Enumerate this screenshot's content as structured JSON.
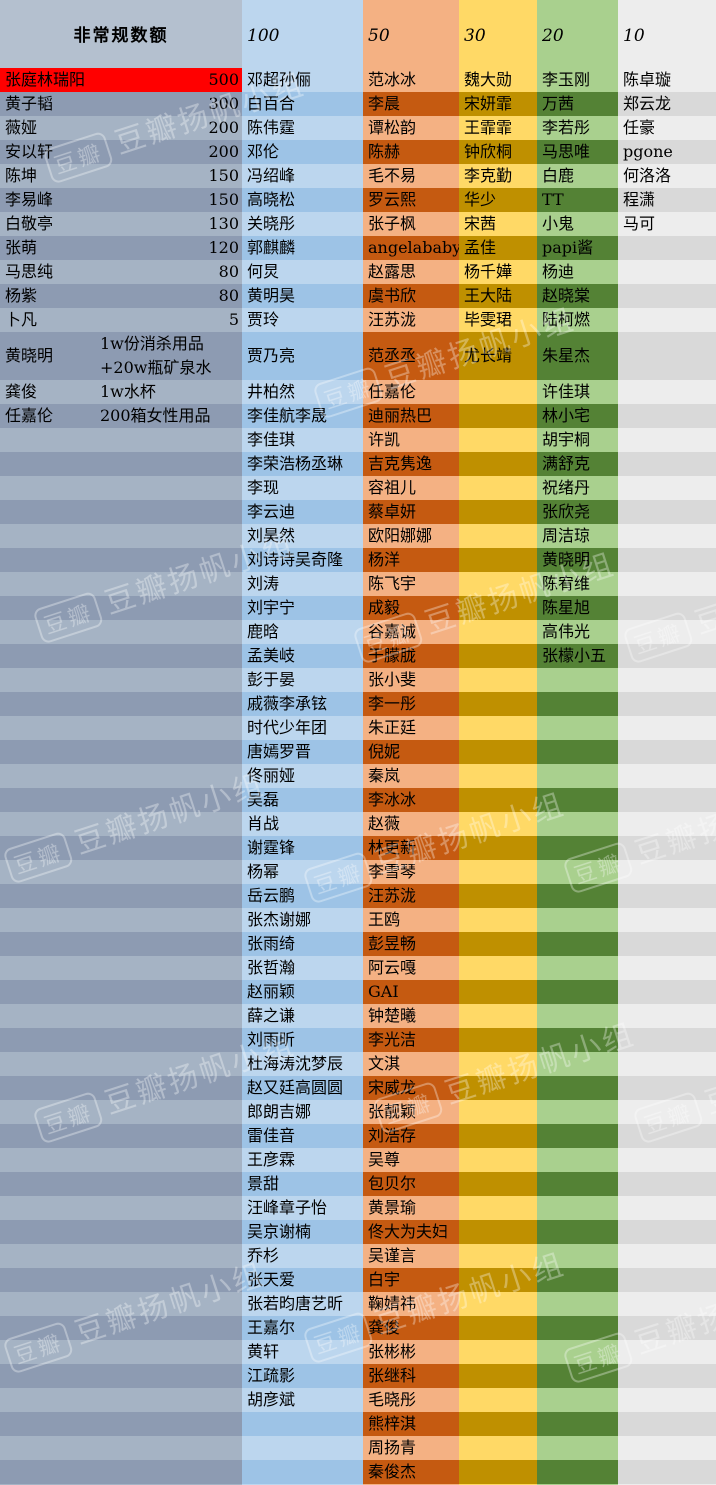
{
  "header": {
    "c0": "非常规数额",
    "c1": "100",
    "c2": "50",
    "c3": "30",
    "c4": "20",
    "c5": "10"
  },
  "colors": {
    "c0_a": "#a5b3c4",
    "c0_b": "#8d9bb2",
    "c1_a": "#bcd6ee",
    "c1_b": "#9dc3e6",
    "c2_a": "#f4b183",
    "c2_b": "#c55a11",
    "c3_a": "#ffd966",
    "c3_b": "#bf9000",
    "c4_a": "#a9d08e",
    "c4_b": "#548235",
    "c5_a": "#ededed",
    "c5_b": "#d9d9d9",
    "highlight": "#ff0000"
  },
  "col0": [
    {
      "name": "张庭林瑞阳",
      "amount": "500",
      "highlight": true
    },
    {
      "name": "黄子韬",
      "amount": "300"
    },
    {
      "name": "薇娅",
      "amount": "200"
    },
    {
      "name": "安以轩",
      "amount": "200"
    },
    {
      "name": "陈坤",
      "amount": "150"
    },
    {
      "name": "李易峰",
      "amount": "150"
    },
    {
      "name": "白敬亭",
      "amount": "130"
    },
    {
      "name": "张萌",
      "amount": "120"
    },
    {
      "name": "马思纯",
      "amount": "80"
    },
    {
      "name": "杨紫",
      "amount": "80"
    },
    {
      "name": "卜凡",
      "amount": "5"
    },
    {
      "name": "黄晓明",
      "note": "1w份消杀用品+20w瓶矿泉水"
    },
    {
      "name": "龚俊",
      "note": "1w水杯"
    },
    {
      "name": "任嘉伦",
      "note": "200箱女性用品"
    }
  ],
  "col1": [
    "邓超孙俪",
    "白百合",
    "陈伟霆",
    "邓伦",
    "冯绍峰",
    "高晓松",
    "关晓彤",
    "郭麒麟",
    "何炅",
    "黄明昊",
    "贾玲",
    "贾乃亮",
    "井柏然",
    "李佳航李晟",
    "李佳琪",
    "李荣浩杨丞琳",
    "李现",
    "李云迪",
    "刘昊然",
    "刘诗诗吴奇隆",
    "刘涛",
    "刘宇宁",
    "鹿晗",
    "孟美岐",
    "彭于晏",
    "戚薇李承铉",
    "时代少年团",
    "唐嫣罗晋",
    "佟丽娅",
    "吴磊",
    "肖战",
    "谢霆锋",
    "杨幂",
    "岳云鹏",
    "张杰谢娜",
    "张雨绮",
    "张哲瀚",
    "赵丽颖",
    "薛之谦",
    "刘雨昕",
    "杜海涛沈梦辰",
    "赵又廷高圆圆",
    "郎朗吉娜",
    "雷佳音",
    "王彦霖",
    "景甜",
    "汪峰章子怡",
    "吴京谢楠",
    "乔杉",
    "张天爱",
    "张若昀唐艺昕",
    "王嘉尔",
    "黄轩",
    "江疏影",
    "胡彦斌"
  ],
  "col2": [
    "范冰冰",
    "李晨",
    "谭松韵",
    "陈赫",
    "毛不易",
    "罗云熙",
    "张子枫",
    "angelababy",
    "赵露思",
    "虞书欣",
    "汪苏泷",
    "范丞丞",
    "任嘉伦",
    "迪丽热巴",
    "许凯",
    "吉克隽逸",
    "容祖儿",
    "蔡卓妍",
    "欧阳娜娜",
    "杨洋",
    "陈飞宇",
    "成毅",
    "谷嘉诚",
    "于朦胧",
    "张小斐",
    "李一彤",
    "朱正廷",
    "倪妮",
    "秦岚",
    "李冰冰",
    "赵薇",
    "林更新",
    "李雪琴",
    "汪苏泷",
    "王鸥",
    "彭昱畅",
    "阿云嘎",
    "GAI",
    "钟楚曦",
    "李光洁",
    "文淇",
    "宋威龙",
    "张靓颖",
    "刘浩存",
    "吴尊",
    "包贝尔",
    "黄景瑜",
    "佟大为夫妇",
    "吴谨言",
    "白宇",
    "鞠婧祎",
    "龚俊",
    "张彬彬",
    "张继科",
    "毛晓彤",
    "熊梓淇",
    "周扬青",
    "秦俊杰"
  ],
  "col3": [
    "魏大勋",
    "宋妍霏",
    "王霏霏",
    "钟欣桐",
    "李克勤",
    "华少",
    "宋茜",
    "孟佳",
    "杨千嬅",
    "王大陆",
    "毕雯珺",
    "尤长靖"
  ],
  "col4": [
    "李玉刚",
    "万茜",
    "李若彤",
    "马思唯",
    "白鹿",
    "TT",
    "小鬼",
    "papi酱",
    "杨迪",
    "赵晓棠",
    "陆柯燃",
    "朱星杰",
    "许佳琪",
    "林小宅",
    "胡宇桐",
    "满舒克",
    "祝绪丹",
    "张欣尧",
    "周洁琼",
    "黄晓明",
    "陈宥维",
    "陈星旭",
    "高伟光",
    "张檬小五"
  ],
  "col5": [
    "陈卓璇",
    "郑云龙",
    "任豪",
    "pgone",
    "何洛洛",
    "程潇",
    "马可"
  ],
  "watermark": {
    "logo": "豆瓣",
    "text": "豆瓣扬帆小组"
  }
}
